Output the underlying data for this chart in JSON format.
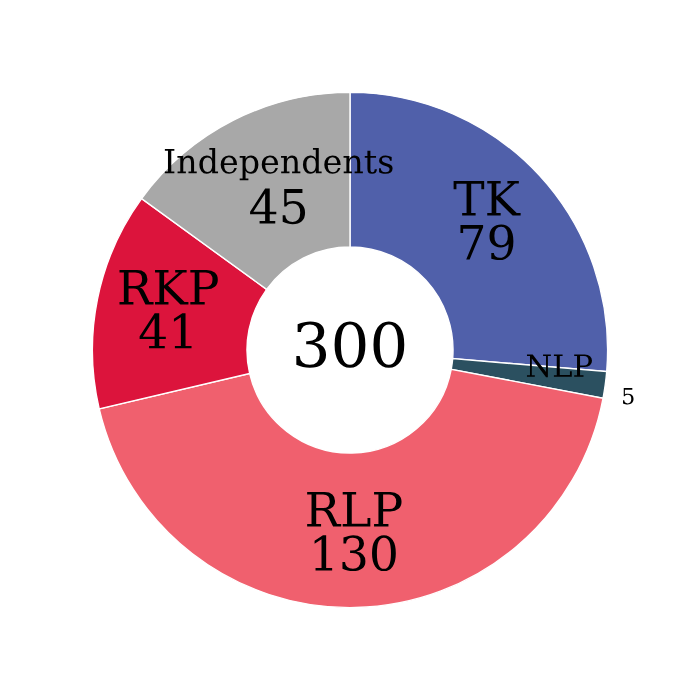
{
  "chart_data": {
    "type": "donut",
    "categories": [
      "TK",
      "NLP",
      "RLP",
      "RKP",
      "Independents"
    ],
    "values": [
      79,
      5,
      130,
      41,
      45
    ],
    "colors": [
      "#5060aa",
      "#2b5060",
      "#f0606e",
      "#dc143c",
      "#a8a8a8"
    ],
    "data_labels": true,
    "annotations": [
      "300"
    ]
  }
}
